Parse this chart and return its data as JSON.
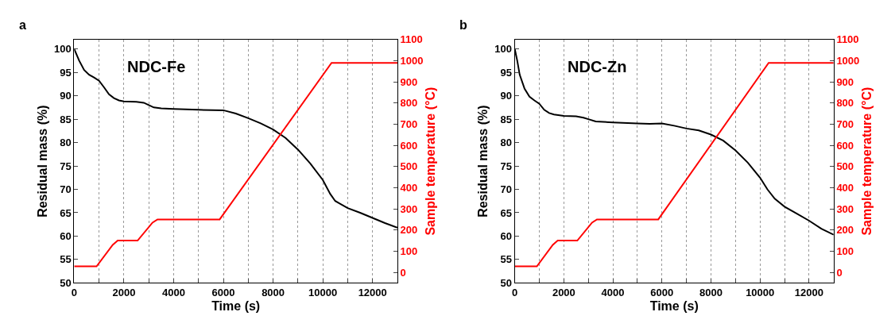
{
  "chart_data": [
    {
      "type": "line",
      "annotations": [
        "a",
        "NDC-Fe"
      ],
      "xlabel": "Time (s)",
      "ylabel": "Residual mass (%)",
      "y2label": "Sample temperature (°C)",
      "xlim": [
        0,
        13000
      ],
      "xticks": [
        0,
        {
          "value": 1000,
          "label": null
        },
        2000,
        {
          "value": 3000,
          "label": null
        },
        4000,
        {
          "value": 5000,
          "label": null
        },
        6000,
        {
          "value": 7000,
          "label": null
        },
        8000,
        {
          "value": 9000,
          "label": null
        },
        10000,
        {
          "value": 11000,
          "label": null
        },
        12000
      ],
      "ylim": [
        50,
        102
      ],
      "yticks": [
        50,
        55,
        60,
        65,
        70,
        75,
        80,
        85,
        90,
        95,
        100
      ],
      "y2lim": [
        -50,
        1100
      ],
      "y2ticks": [
        0,
        100,
        200,
        300,
        400,
        500,
        600,
        700,
        800,
        900,
        1000,
        1100
      ],
      "grid": "x",
      "line_style": "solid",
      "series": [
        {
          "color": "#000000",
          "x": [
            0,
            200,
            400,
            600,
            800,
            1000,
            1200,
            1400,
            1600,
            1800,
            2000,
            2500,
            2800,
            3000,
            3200,
            3500,
            4000,
            5000,
            6000,
            6500,
            7000,
            7500,
            8000,
            8500,
            9000,
            9500,
            10000,
            10300,
            10500,
            11000,
            11500,
            12000,
            12500,
            13000
          ],
          "values": [
            100,
            97.5,
            95.5,
            94.5,
            93.9,
            93.2,
            91.8,
            90.3,
            89.5,
            89.0,
            88.8,
            88.7,
            88.5,
            88.0,
            87.5,
            87.3,
            87.2,
            87.0,
            86.9,
            86.2,
            85.2,
            84.1,
            82.8,
            81.0,
            78.5,
            75.5,
            72.0,
            69.0,
            67.5,
            66.0,
            65.0,
            63.9,
            62.8,
            61.8
          ]
        },
        {
          "color": "#ff0000",
          "axis": "y2",
          "x": [
            0,
            900,
            1550,
            1750,
            2550,
            3150,
            3350,
            5850,
            10350,
            13000
          ],
          "values": [
            28,
            28,
            130,
            150,
            150,
            235,
            250,
            250,
            990,
            990
          ]
        }
      ]
    },
    {
      "type": "line",
      "annotations": [
        "b",
        "NDC-Zn"
      ],
      "xlabel": "Time (s)",
      "ylabel": "Residual mass (%)",
      "y2label": "Sample temperature (°C)",
      "xlim": [
        0,
        13000
      ],
      "xticks": [
        0,
        {
          "value": 1000,
          "label": null
        },
        2000,
        {
          "value": 3000,
          "label": null
        },
        4000,
        {
          "value": 5000,
          "label": null
        },
        6000,
        {
          "value": 7000,
          "label": null
        },
        8000,
        {
          "value": 9000,
          "label": null
        },
        10000,
        {
          "value": 11000,
          "label": null
        },
        12000
      ],
      "ylim": [
        50,
        102
      ],
      "yticks": [
        50,
        55,
        60,
        65,
        70,
        75,
        80,
        85,
        90,
        95,
        100
      ],
      "y2lim": [
        -50,
        1100
      ],
      "y2ticks": [
        0,
        100,
        200,
        300,
        400,
        500,
        600,
        700,
        800,
        900,
        1000,
        1100
      ],
      "grid": "x",
      "line_style": "solid",
      "series": [
        {
          "color": "#000000",
          "x": [
            0,
            100,
            200,
            400,
            600,
            800,
            1000,
            1200,
            1400,
            1600,
            2000,
            2500,
            2800,
            3000,
            3300,
            4000,
            5000,
            5500,
            6000,
            6500,
            7000,
            7500,
            8000,
            8500,
            9000,
            9500,
            10000,
            10300,
            10600,
            11000,
            11500,
            12000,
            12500,
            13000
          ],
          "values": [
            100,
            97.5,
            94.5,
            91.5,
            89.8,
            89.0,
            88.3,
            87.0,
            86.3,
            86.0,
            85.7,
            85.6,
            85.3,
            85.0,
            84.5,
            84.3,
            84.1,
            84.0,
            84.1,
            83.6,
            83.0,
            82.6,
            81.7,
            80.4,
            78.3,
            75.7,
            72.5,
            70.0,
            68.0,
            66.3,
            64.8,
            63.3,
            61.6,
            60.3
          ]
        },
        {
          "color": "#ff0000",
          "axis": "y2",
          "x": [
            0,
            900,
            1550,
            1750,
            2550,
            3150,
            3350,
            5850,
            10350,
            13000
          ],
          "values": [
            28,
            28,
            130,
            150,
            150,
            235,
            250,
            250,
            990,
            990
          ]
        }
      ]
    }
  ]
}
